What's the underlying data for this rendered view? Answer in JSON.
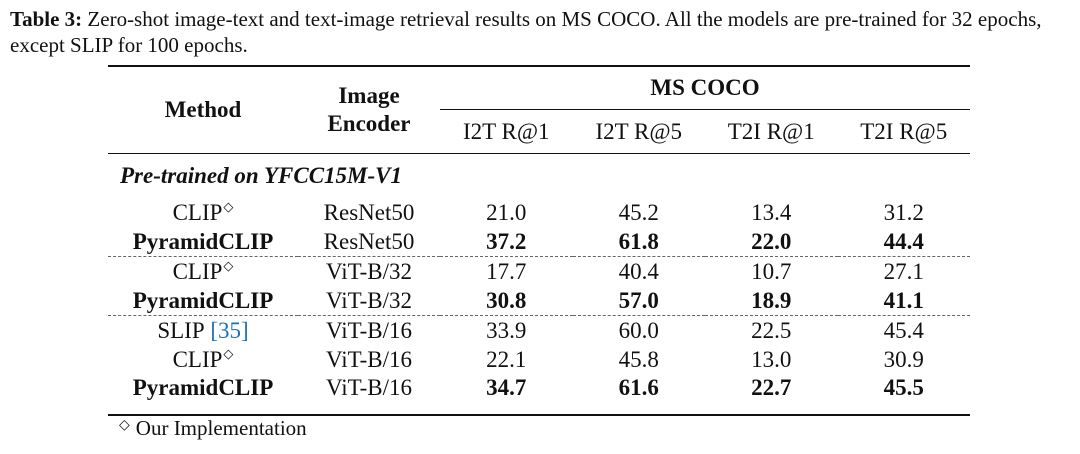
{
  "caption": {
    "label": "Table 3:",
    "text": "Zero-shot image-text and text-image retrieval results on MS COCO. All the models are pre-trained for 32 epochs, except SLIP for 100 epochs."
  },
  "table": {
    "header": {
      "method": "Method",
      "encoder": "Image Encoder",
      "group": "MS COCO",
      "metrics": [
        "I2T R@1",
        "I2T R@5",
        "T2I R@1",
        "T2I R@5"
      ]
    },
    "section": "Pre-trained on YFCC15M-V1",
    "groups": [
      [
        {
          "method": "CLIP",
          "marker": "◇",
          "encoder": "ResNet50",
          "values": [
            "21.0",
            "45.2",
            "13.4",
            "31.2"
          ],
          "bold": false
        },
        {
          "method": "PyramidCLIP",
          "encoder": "ResNet50",
          "values": [
            "37.2",
            "61.8",
            "22.0",
            "44.4"
          ],
          "bold": true
        }
      ],
      [
        {
          "method": "CLIP",
          "marker": "◇",
          "encoder": "ViT-B/32",
          "values": [
            "17.7",
            "40.4",
            "10.7",
            "27.1"
          ],
          "bold": false
        },
        {
          "method": "PyramidCLIP",
          "encoder": "ViT-B/32",
          "values": [
            "30.8",
            "57.0",
            "18.9",
            "41.1"
          ],
          "bold": true
        }
      ],
      [
        {
          "method": "SLIP",
          "citation": "[35]",
          "encoder": "ViT-B/16",
          "values": [
            "33.9",
            "60.0",
            "22.5",
            "45.4"
          ],
          "bold": false
        },
        {
          "method": "CLIP",
          "marker": "◇",
          "encoder": "ViT-B/16",
          "values": [
            "22.1",
            "45.8",
            "13.0",
            "30.9"
          ],
          "bold": false
        },
        {
          "method": "PyramidCLIP",
          "encoder": "ViT-B/16",
          "values": [
            "34.7",
            "61.6",
            "22.7",
            "45.5"
          ],
          "bold": true
        }
      ]
    ]
  },
  "footnote": {
    "marker": "◇",
    "text": "Our Implementation"
  }
}
